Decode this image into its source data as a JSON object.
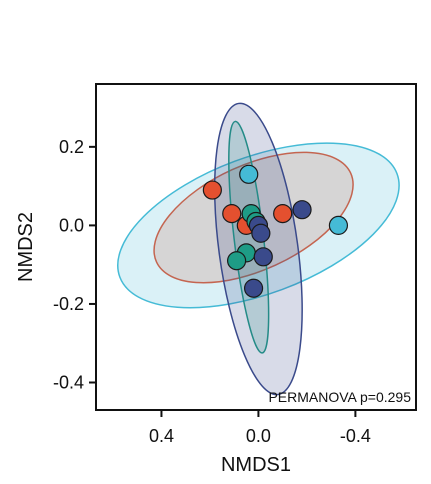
{
  "chart_data": {
    "type": "scatter",
    "xlabel": "NMDS1",
    "ylabel": "NMDS2",
    "x_reversed": true,
    "xlim": [
      0.67,
      -0.65
    ],
    "ylim": [
      -0.47,
      0.36
    ],
    "x_ticks": [
      0.4,
      0.0,
      -0.4
    ],
    "x_tick_labels": [
      "0.4",
      "0.0",
      "-0.4"
    ],
    "y_ticks": [
      0.2,
      0.0,
      -0.2,
      -0.4
    ],
    "y_tick_labels": [
      "0.2",
      "0.0",
      "-0.2",
      "-0.4"
    ],
    "grid": false,
    "annotation": "PERMANOVA p=0.295",
    "colors": {
      "red": "#e4502f",
      "cyan": "#45bbd6",
      "teal": "#1e9c86",
      "navy": "#3a4a8b"
    },
    "series": [
      {
        "color": "#e4502f",
        "points": [
          [
            0.19,
            0.09
          ],
          [
            0.11,
            0.03
          ],
          [
            -0.1,
            0.03
          ],
          [
            0.05,
            0.0
          ]
        ],
        "ellipse": {
          "cx": 0.02,
          "cy": 0.02,
          "rx": 0.42,
          "ry": 0.14,
          "angle": -13
        }
      },
      {
        "color": "#45bbd6",
        "points": [
          [
            0.04,
            0.13
          ],
          [
            -0.33,
            0.0
          ],
          [
            0.0,
            0.0
          ]
        ],
        "ellipse": {
          "cx": 0.0,
          "cy": 0.0,
          "rx": 0.59,
          "ry": 0.18,
          "angle": -11
        }
      },
      {
        "color": "#1e9c86",
        "points": [
          [
            0.03,
            0.03
          ],
          [
            0.01,
            0.01
          ],
          [
            0.05,
            -0.07
          ],
          [
            0.09,
            -0.09
          ]
        ],
        "ellipse": {
          "cx": 0.04,
          "cy": -0.03,
          "rx": 0.3,
          "ry": 0.06,
          "angle": 79
        }
      },
      {
        "color": "#3a4a8b",
        "points": [
          [
            -0.18,
            0.04
          ],
          [
            0.0,
            0.0
          ],
          [
            -0.01,
            -0.02
          ],
          [
            -0.02,
            -0.08
          ],
          [
            0.02,
            -0.16
          ]
        ],
        "ellipse": {
          "cx": 0.0,
          "cy": -0.06,
          "rx": 0.38,
          "ry": 0.16,
          "angle": 76
        }
      }
    ]
  }
}
